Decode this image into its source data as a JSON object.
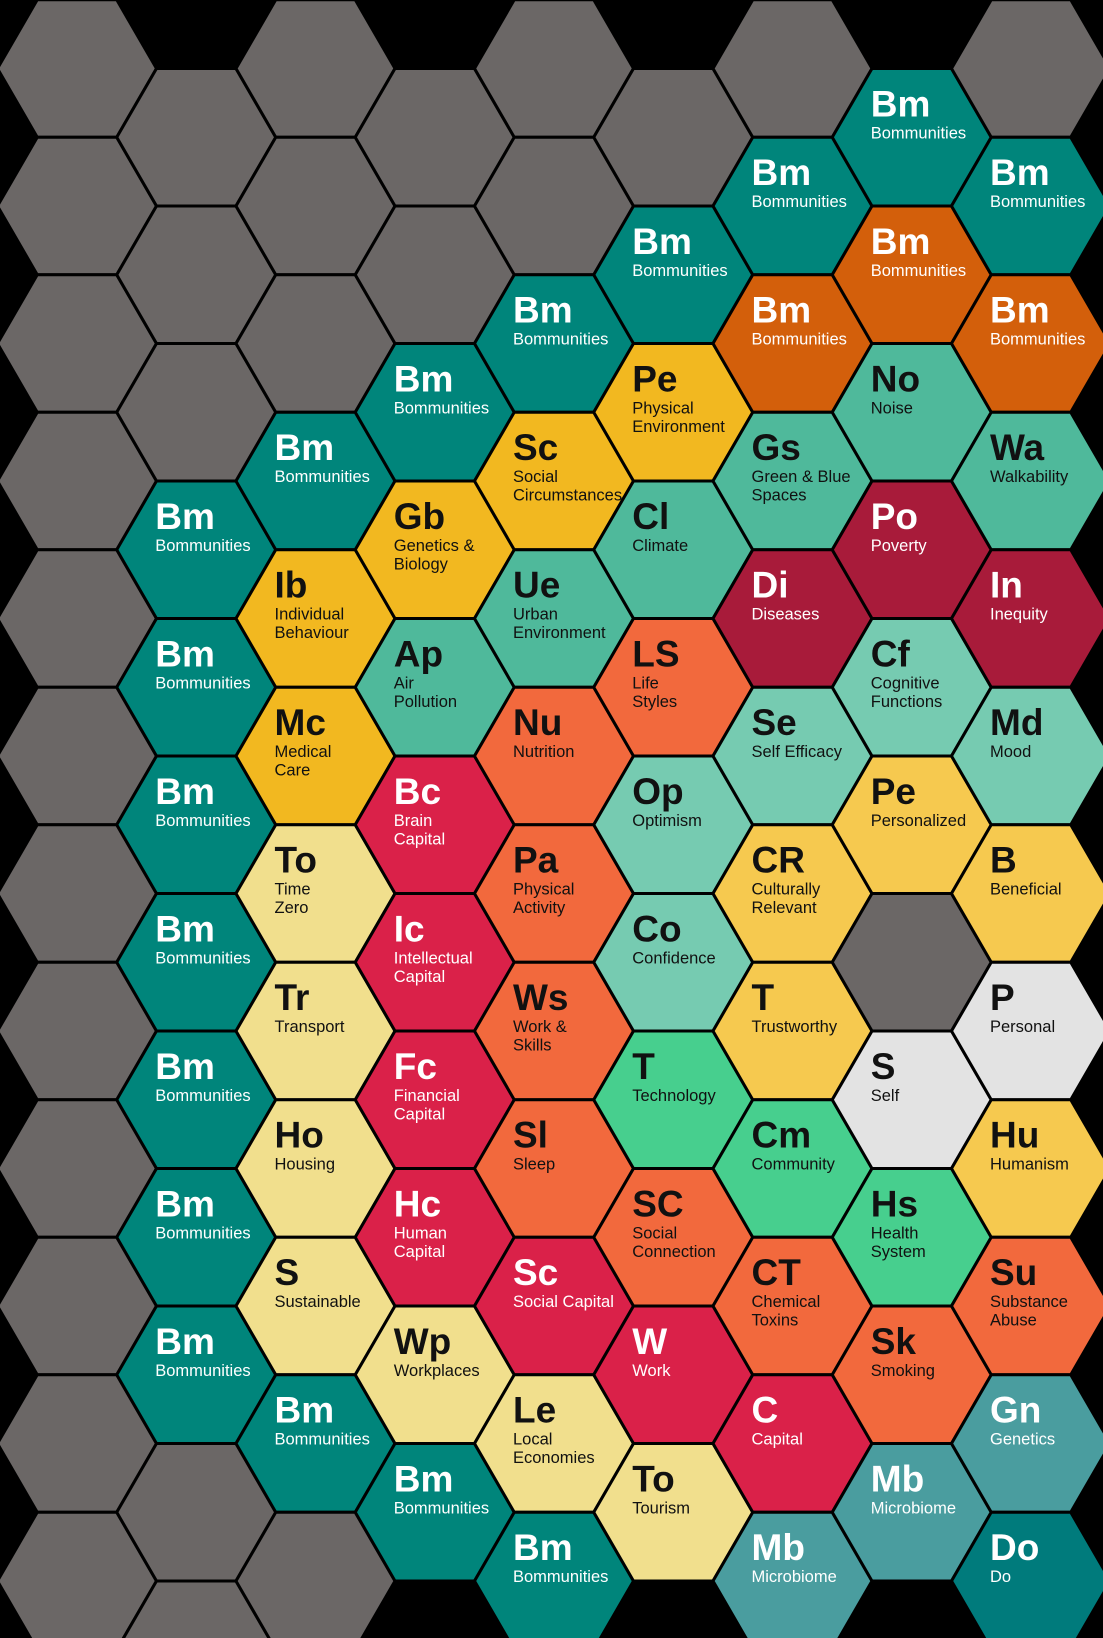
{
  "columns": [
    [
      {
        "fill": "#6b6766"
      },
      {
        "fill": "#6b6766"
      },
      {
        "fill": "#6b6766"
      },
      {
        "fill": "#6b6766"
      },
      {
        "fill": "#6b6766"
      },
      {
        "fill": "#6b6766"
      },
      {
        "fill": "#6b6766"
      },
      {
        "fill": "#6b6766"
      },
      {
        "fill": "#6b6766"
      },
      {
        "fill": "#6b6766"
      },
      {
        "fill": "#6b6766"
      },
      {
        "fill": "#6b6766"
      }
    ],
    [
      {
        "fill": "#6b6766"
      },
      {
        "fill": "#6b6766"
      },
      {
        "fill": "#6b6766"
      },
      {
        "symbol": "Bm",
        "name": [
          "Bommunities"
        ],
        "fill": "#00857b",
        "ink": "#ffffff"
      },
      {
        "symbol": "Bm",
        "name": [
          "Bommunities"
        ],
        "fill": "#00857b",
        "ink": "#ffffff"
      },
      {
        "symbol": "Bm",
        "name": [
          "Bommunities"
        ],
        "fill": "#00857b",
        "ink": "#ffffff"
      },
      {
        "symbol": "Bm",
        "name": [
          "Bommunities"
        ],
        "fill": "#00857b",
        "ink": "#ffffff"
      },
      {
        "symbol": "Bm",
        "name": [
          "Bommunities"
        ],
        "fill": "#00857b",
        "ink": "#ffffff"
      },
      {
        "symbol": "Bm",
        "name": [
          "Bommunities"
        ],
        "fill": "#00857b",
        "ink": "#ffffff"
      },
      {
        "symbol": "Bm",
        "name": [
          "Bommunities"
        ],
        "fill": "#00857b",
        "ink": "#ffffff"
      },
      {
        "fill": "#6b6766"
      },
      {
        "fill": "#6b6766"
      }
    ],
    [
      {
        "fill": "#6b6766"
      },
      {
        "fill": "#6b6766"
      },
      {
        "fill": "#6b6766"
      },
      {
        "symbol": "Bm",
        "name": [
          "Bommunities"
        ],
        "fill": "#00857b",
        "ink": "#ffffff"
      },
      {
        "symbol": "Ib",
        "name": [
          "Individual",
          "Behaviour"
        ],
        "fill": "#f2b820",
        "ink": "#111111"
      },
      {
        "symbol": "Mc",
        "name": [
          "Medical",
          "Care"
        ],
        "fill": "#f2b820",
        "ink": "#111111"
      },
      {
        "symbol": "To",
        "name": [
          "Time",
          "Zero"
        ],
        "fill": "#f1df8d",
        "ink": "#111111"
      },
      {
        "symbol": "Tr",
        "name": [
          "Transport"
        ],
        "fill": "#f1df8d",
        "ink": "#111111"
      },
      {
        "symbol": "Ho",
        "name": [
          "Housing"
        ],
        "fill": "#f1df8d",
        "ink": "#111111"
      },
      {
        "symbol": "S",
        "name": [
          "Sustainable"
        ],
        "fill": "#f1df8d",
        "ink": "#111111"
      },
      {
        "symbol": "Bm",
        "name": [
          "Bommunities"
        ],
        "fill": "#00857b",
        "ink": "#ffffff"
      },
      {
        "fill": "#6b6766"
      }
    ],
    [
      {
        "fill": "#6b6766"
      },
      {
        "fill": "#6b6766"
      },
      {
        "symbol": "Bm",
        "name": [
          "Bommunities"
        ],
        "fill": "#00857b",
        "ink": "#ffffff"
      },
      {
        "symbol": "Gb",
        "name": [
          "Genetics &",
          "Biology"
        ],
        "fill": "#f2b820",
        "ink": "#111111"
      },
      {
        "symbol": "Ap",
        "name": [
          "Air",
          "Pollution"
        ],
        "fill": "#4fb99b",
        "ink": "#111111"
      },
      {
        "symbol": "Bc",
        "name": [
          "Brain",
          "Capital"
        ],
        "fill": "#da2149",
        "ink": "#ffffff"
      },
      {
        "symbol": "Ic",
        "name": [
          "Intellectual",
          "Capital"
        ],
        "fill": "#da2149",
        "ink": "#ffffff"
      },
      {
        "symbol": "Fc",
        "name": [
          "Financial",
          "Capital"
        ],
        "fill": "#da2149",
        "ink": "#ffffff"
      },
      {
        "symbol": "Hc",
        "name": [
          "Human",
          "Capital"
        ],
        "fill": "#da2149",
        "ink": "#ffffff"
      },
      {
        "symbol": "Wp",
        "name": [
          "Workplaces"
        ],
        "fill": "#f1df8d",
        "ink": "#111111"
      },
      {
        "symbol": "Bm",
        "name": [
          "Bommunities"
        ],
        "fill": "#00857b",
        "ink": "#ffffff"
      }
    ],
    [
      {
        "fill": "#6b6766"
      },
      {
        "fill": "#6b6766"
      },
      {
        "symbol": "Bm",
        "name": [
          "Bommunities"
        ],
        "fill": "#00857b",
        "ink": "#ffffff"
      },
      {
        "symbol": "Sc",
        "name": [
          "Social",
          "Circumstances"
        ],
        "fill": "#f2b820",
        "ink": "#111111"
      },
      {
        "symbol": "Ue",
        "name": [
          "Urban",
          "Environment"
        ],
        "fill": "#4fb99b",
        "ink": "#111111"
      },
      {
        "symbol": "Nu",
        "name": [
          "Nutrition"
        ],
        "fill": "#f2693d",
        "ink": "#111111"
      },
      {
        "symbol": "Pa",
        "name": [
          "Physical",
          "Activity"
        ],
        "fill": "#f2693d",
        "ink": "#111111"
      },
      {
        "symbol": "Ws",
        "name": [
          "Work &",
          "Skills"
        ],
        "fill": "#f2693d",
        "ink": "#111111"
      },
      {
        "symbol": "Sl",
        "name": [
          "Sleep"
        ],
        "fill": "#f2693d",
        "ink": "#111111"
      },
      {
        "symbol": "Sc",
        "name": [
          "Social Capital"
        ],
        "fill": "#da2149",
        "ink": "#ffffff"
      },
      {
        "symbol": "Le",
        "name": [
          "Local",
          "Economies"
        ],
        "fill": "#f1df8d",
        "ink": "#111111"
      },
      {
        "symbol": "Bm",
        "name": [
          "Bommunities"
        ],
        "fill": "#00857b",
        "ink": "#ffffff"
      }
    ],
    [
      {
        "fill": "#6b6766"
      },
      {
        "symbol": "Bm",
        "name": [
          "Bommunities"
        ],
        "fill": "#00857b",
        "ink": "#ffffff"
      },
      {
        "symbol": "Pe",
        "name": [
          "Physical",
          "Environment"
        ],
        "fill": "#f2b820",
        "ink": "#111111"
      },
      {
        "symbol": "Cl",
        "name": [
          "Climate"
        ],
        "fill": "#4fb99b",
        "ink": "#111111"
      },
      {
        "symbol": "LS",
        "name": [
          "Life",
          "Styles"
        ],
        "fill": "#f2693d",
        "ink": "#111111"
      },
      {
        "symbol": "Op",
        "name": [
          "Optimism"
        ],
        "fill": "#76cbb1",
        "ink": "#111111"
      },
      {
        "symbol": "Co",
        "name": [
          "Confidence"
        ],
        "fill": "#76cbb1",
        "ink": "#111111"
      },
      {
        "symbol": "T",
        "name": [
          "Technology"
        ],
        "fill": "#47cf8e",
        "ink": "#111111"
      },
      {
        "symbol": "SC",
        "name": [
          "Social",
          "Connection"
        ],
        "fill": "#f2693d",
        "ink": "#111111"
      },
      {
        "symbol": "W",
        "name": [
          "Work"
        ],
        "fill": "#da2149",
        "ink": "#ffffff"
      },
      {
        "symbol": "To",
        "name": [
          "Tourism"
        ],
        "fill": "#f1df8d",
        "ink": "#111111"
      }
    ],
    [
      {
        "fill": "#6b6766"
      },
      {
        "symbol": "Bm",
        "name": [
          "Bommunities"
        ],
        "fill": "#00857b",
        "ink": "#ffffff"
      },
      {
        "symbol": "Bm",
        "name": [
          "Bommunities"
        ],
        "fill": "#d35f0b",
        "ink": "#ffffff"
      },
      {
        "symbol": "Gs",
        "name": [
          "Green & Blue",
          "Spaces"
        ],
        "fill": "#4fb99b",
        "ink": "#111111"
      },
      {
        "symbol": "Di",
        "name": [
          "Diseases"
        ],
        "fill": "#a81b3a",
        "ink": "#ffffff"
      },
      {
        "symbol": "Se",
        "name": [
          "Self Efficacy"
        ],
        "fill": "#76cbb1",
        "ink": "#111111"
      },
      {
        "symbol": "CR",
        "name": [
          "Culturally",
          "Relevant"
        ],
        "fill": "#f6c94f",
        "ink": "#111111"
      },
      {
        "symbol": "T",
        "name": [
          "Trustworthy"
        ],
        "fill": "#f6c94f",
        "ink": "#111111"
      },
      {
        "symbol": "Cm",
        "name": [
          "Community"
        ],
        "fill": "#47cf8e",
        "ink": "#111111"
      },
      {
        "symbol": "CT",
        "name": [
          "Chemical",
          "Toxins"
        ],
        "fill": "#f2693d",
        "ink": "#111111"
      },
      {
        "symbol": "C",
        "name": [
          "Capital"
        ],
        "fill": "#da2149",
        "ink": "#ffffff"
      },
      {
        "symbol": "Mb",
        "name": [
          "Microbiome"
        ],
        "fill": "#4a9d9f",
        "ink": "#ffffff"
      }
    ],
    [
      {
        "symbol": "Bm",
        "name": [
          "Bommunities"
        ],
        "fill": "#00857b",
        "ink": "#ffffff"
      },
      {
        "symbol": "Bm",
        "name": [
          "Bommunities"
        ],
        "fill": "#d35f0b",
        "ink": "#ffffff"
      },
      {
        "symbol": "No",
        "name": [
          "Noise"
        ],
        "fill": "#4fb99b",
        "ink": "#111111"
      },
      {
        "symbol": "Po",
        "name": [
          "Poverty"
        ],
        "fill": "#a81b3a",
        "ink": "#ffffff"
      },
      {
        "symbol": "Cf",
        "name": [
          "Cognitive",
          "Functions"
        ],
        "fill": "#76cbb1",
        "ink": "#111111"
      },
      {
        "symbol": "Pe",
        "name": [
          "Personalized"
        ],
        "fill": "#f6c94f",
        "ink": "#111111"
      },
      {
        "fill": "#6b6766"
      },
      {
        "symbol": "S",
        "name": [
          "Self"
        ],
        "fill": "#e3e3e3",
        "ink": "#111111"
      },
      {
        "symbol": "Hs",
        "name": [
          "Health",
          "System"
        ],
        "fill": "#47cf8e",
        "ink": "#111111"
      },
      {
        "symbol": "Sk",
        "name": [
          "Smoking"
        ],
        "fill": "#f2693d",
        "ink": "#111111"
      },
      {
        "symbol": "Mb",
        "name": [
          "Microbiome"
        ],
        "fill": "#4a9d9f",
        "ink": "#ffffff"
      }
    ],
    [
      {
        "fill": "#6b6766"
      },
      {
        "symbol": "Bm",
        "name": [
          "Bommunities"
        ],
        "fill": "#00857b",
        "ink": "#ffffff"
      },
      {
        "symbol": "Bm",
        "name": [
          "Bommunities"
        ],
        "fill": "#d35f0b",
        "ink": "#ffffff"
      },
      {
        "symbol": "Wa",
        "name": [
          "Walkability"
        ],
        "fill": "#4fb99b",
        "ink": "#111111"
      },
      {
        "symbol": "In",
        "name": [
          "Inequity"
        ],
        "fill": "#a81b3a",
        "ink": "#ffffff"
      },
      {
        "symbol": "Md",
        "name": [
          "Mood"
        ],
        "fill": "#76cbb1",
        "ink": "#111111"
      },
      {
        "symbol": "B",
        "name": [
          "Beneficial"
        ],
        "fill": "#f6c94f",
        "ink": "#111111"
      },
      {
        "symbol": "P",
        "name": [
          "Personal"
        ],
        "fill": "#e3e3e3",
        "ink": "#111111"
      },
      {
        "symbol": "Hu",
        "name": [
          "Humanism"
        ],
        "fill": "#f6c94f",
        "ink": "#111111"
      },
      {
        "symbol": "Su",
        "name": [
          "Substance",
          "Abuse"
        ],
        "fill": "#f2693d",
        "ink": "#111111"
      },
      {
        "symbol": "Gn",
        "name": [
          "Genetics"
        ],
        "fill": "#4a9d9f",
        "ink": "#ffffff"
      },
      {
        "symbol": "Do",
        "name": [
          "Do"
        ],
        "fill": "#007b7c",
        "ink": "#ffffff"
      }
    ]
  ]
}
